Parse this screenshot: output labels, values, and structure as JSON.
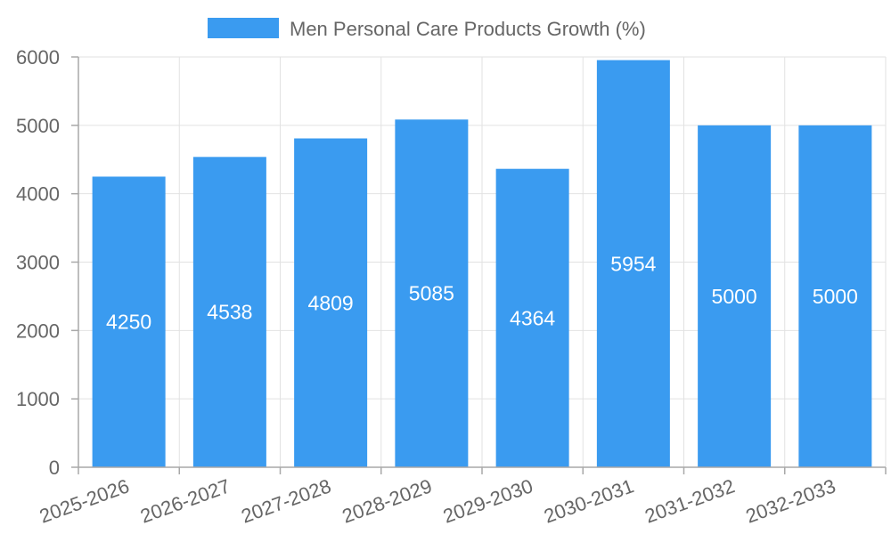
{
  "chart_data": {
    "type": "bar",
    "categories": [
      "2025-2026",
      "2026-2027",
      "2027-2028",
      "2028-2029",
      "2029-2030",
      "2030-2031",
      "2031-2032",
      "2032-2033"
    ],
    "series": [
      {
        "name": "Men Personal Care Products Growth (%)",
        "values": [
          4250,
          4538,
          4809,
          5085,
          4364,
          5954,
          5000,
          5000
        ],
        "color": "#3a9bf0"
      }
    ],
    "ylim": [
      0,
      6000
    ],
    "yticks": [
      0,
      1000,
      2000,
      3000,
      4000,
      5000,
      6000
    ],
    "grid": true,
    "legend": "top-center",
    "data_labels": true
  }
}
